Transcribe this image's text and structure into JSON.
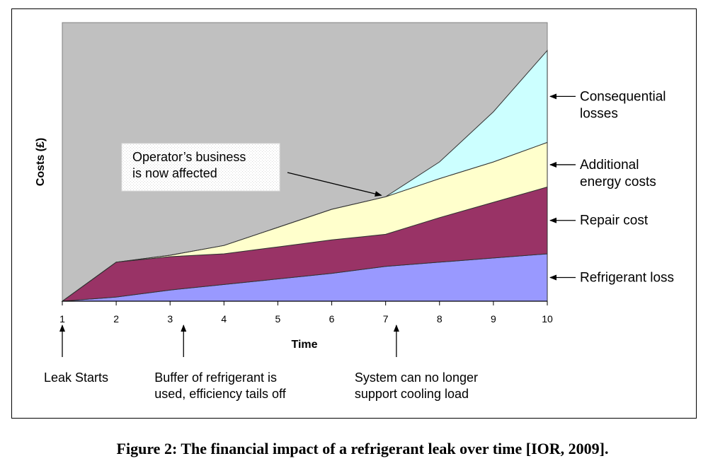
{
  "caption": "Figure 2:  The financial impact of a refrigerant leak over time [IOR, 2009].",
  "chart_data": {
    "type": "area",
    "stacked": true,
    "xlabel": "Time",
    "ylabel": "Costs (£)",
    "x": [
      1,
      2,
      3,
      4,
      5,
      6,
      7,
      8,
      9,
      10
    ],
    "xlim": [
      1,
      10
    ],
    "ylim": [
      0,
      100
    ],
    "grid": false,
    "series": [
      {
        "name": "Refrigerant loss",
        "color": "#9999ff",
        "values": [
          0,
          1.5,
          4,
          6,
          8,
          10,
          12.5,
          14,
          15.5,
          17
        ]
      },
      {
        "name": "Repair cost",
        "color": "#993366",
        "values": [
          0,
          12.5,
          12,
          11,
          11.5,
          12,
          11.5,
          16,
          20,
          24
        ]
      },
      {
        "name": "Additional energy costs",
        "color": "#ffffcc",
        "values": [
          0,
          0,
          0.5,
          3,
          7,
          11,
          13.5,
          14,
          14.5,
          16
        ]
      },
      {
        "name": "Consequential losses",
        "color": "#ccffff",
        "values": [
          0,
          0,
          0,
          0,
          0,
          0,
          0,
          6,
          18,
          33
        ]
      }
    ],
    "background_color": "#c0c0c0",
    "annotations": {
      "business_note": [
        "Operator’s business",
        "is now affected"
      ],
      "business_point_x": 7,
      "events": [
        {
          "x": 1,
          "lines": [
            "Leak Starts"
          ]
        },
        {
          "x": 3.25,
          "lines": [
            "Buffer of refrigerant is",
            "used, efficiency tails off"
          ]
        },
        {
          "x": 7.2,
          "lines": [
            "System can no longer",
            "support cooling load"
          ]
        }
      ]
    },
    "legend_labels": [
      {
        "series": 3,
        "lines": [
          "Consequential",
          "losses"
        ]
      },
      {
        "series": 2,
        "lines": [
          "Additional",
          "energy costs"
        ]
      },
      {
        "series": 1,
        "lines": [
          "Repair cost"
        ]
      },
      {
        "series": 0,
        "lines": [
          "Refrigerant loss"
        ]
      }
    ]
  }
}
